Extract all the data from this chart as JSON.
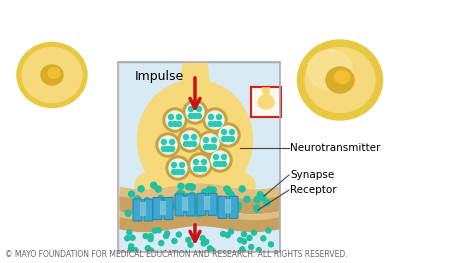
{
  "copyright_text": "© MAYO FOUNDATION FOR MEDICAL EDUCATION AND RESEARCH. ALL RIGHTS RESERVED.",
  "copyright_fontsize": 5.5,
  "copyright_color": "#666666",
  "background_color": "#ffffff",
  "labels": {
    "impulse": "Impulse",
    "neurotransmitter": "Neurotransmitter",
    "synapse": "Synapse",
    "receptor": "Receptor"
  },
  "inset_bg": "#d8eaf4",
  "inset_edge": "#aaaaaa",
  "neuron_color": "#f5d97a",
  "neuron_dark": "#d4a820",
  "neuron_mid": "#e8c840",
  "neuron_light": "#f8e8a0",
  "synapse_color": "#c8a060",
  "synapse_light": "#dfc080",
  "vesicle_ring": "#c8a040",
  "vesicle_fill": "#30c8b0",
  "dot_color": "#20c0a0",
  "receptor_color": "#40a8d0",
  "receptor_light": "#90d8f0",
  "arrow_color": "#cc1111",
  "small_arrow_color": "#991111",
  "label_line_color": "#444444"
}
